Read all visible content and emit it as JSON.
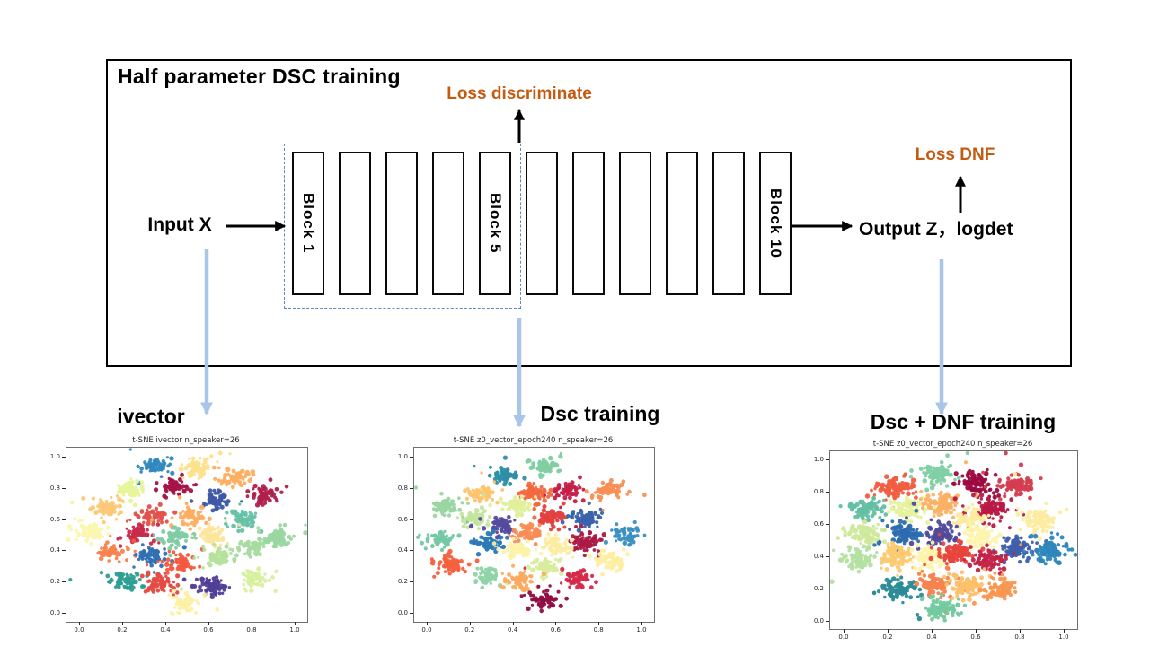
{
  "diagram": {
    "box_title": "Half parameter DSC training",
    "input_label": "Input X",
    "output_label": "Output Z，logdet",
    "loss_discriminate_label": "Loss discriminate",
    "loss_dnf_label": "Loss DNF",
    "blocks": [
      "Block 1",
      "",
      "",
      "",
      "Block 5",
      "",
      "",
      "",
      "",
      "",
      "Block 10"
    ],
    "colors": {
      "loss_text": "#c55a11",
      "box_title_gray": "#a9a9a9",
      "dashed_border": "#6187b4",
      "flow_arrow_blue": "#a9c6e8",
      "arrow_black": "#000000"
    }
  },
  "chart_data": [
    {
      "type": "scatter",
      "heading": "ivector",
      "title": "t-SNE  ivector n_speaker=26",
      "x_ticks": [
        "0.0",
        "0.2",
        "0.4",
        "0.6",
        "0.8",
        "1.0"
      ],
      "y_ticks": [
        "0.0",
        "0.2",
        "0.4",
        "0.6",
        "0.8",
        "1.0"
      ],
      "xlim": [
        0,
        1
      ],
      "ylim": [
        0,
        1
      ],
      "n_speakers": 26,
      "clusters": [
        {
          "x": 0.35,
          "y": 0.93,
          "color": "#3288bd"
        },
        {
          "x": 0.55,
          "y": 0.93,
          "color": "#fee08b"
        },
        {
          "x": 0.72,
          "y": 0.87,
          "color": "#fdae61"
        },
        {
          "x": 0.24,
          "y": 0.79,
          "color": "#e6f598"
        },
        {
          "x": 0.44,
          "y": 0.8,
          "color": "#a51347"
        },
        {
          "x": 0.63,
          "y": 0.73,
          "color": "#3e59a7"
        },
        {
          "x": 0.86,
          "y": 0.75,
          "color": "#b0204c"
        },
        {
          "x": 0.12,
          "y": 0.67,
          "color": "#fdc877"
        },
        {
          "x": 0.34,
          "y": 0.62,
          "color": "#e1514b"
        },
        {
          "x": 0.52,
          "y": 0.62,
          "color": "#fdae61"
        },
        {
          "x": 0.76,
          "y": 0.6,
          "color": "#66c2a5"
        },
        {
          "x": 0.05,
          "y": 0.52,
          "color": "#fbf7ae"
        },
        {
          "x": 0.27,
          "y": 0.5,
          "color": "#c92a49"
        },
        {
          "x": 0.45,
          "y": 0.48,
          "color": "#7fcba4"
        },
        {
          "x": 0.62,
          "y": 0.5,
          "color": "#fee59d"
        },
        {
          "x": 0.92,
          "y": 0.48,
          "color": "#9ad7a0"
        },
        {
          "x": 0.15,
          "y": 0.39,
          "color": "#f9824f"
        },
        {
          "x": 0.33,
          "y": 0.36,
          "color": "#2f6fb3"
        },
        {
          "x": 0.47,
          "y": 0.32,
          "color": "#f4593f"
        },
        {
          "x": 0.65,
          "y": 0.35,
          "color": "#b5e19c"
        },
        {
          "x": 0.8,
          "y": 0.42,
          "color": "#a6dba0"
        },
        {
          "x": 0.22,
          "y": 0.2,
          "color": "#2d9e94"
        },
        {
          "x": 0.38,
          "y": 0.18,
          "color": "#e44b42"
        },
        {
          "x": 0.62,
          "y": 0.17,
          "color": "#4f3f97"
        },
        {
          "x": 0.82,
          "y": 0.22,
          "color": "#d8ef9e"
        },
        {
          "x": 0.5,
          "y": 0.06,
          "color": "#fdf0a4"
        }
      ]
    },
    {
      "type": "scatter",
      "heading": "Dsc training",
      "title": "t-SNE z0_vector_epoch240 n_speaker=26",
      "x_ticks": [
        "0.0",
        "0.2",
        "0.4",
        "0.6",
        "0.8",
        "1.0"
      ],
      "y_ticks": [
        "0.0",
        "0.2",
        "0.4",
        "0.6",
        "0.8",
        "1.0"
      ],
      "xlim": [
        0,
        1
      ],
      "ylim": [
        0,
        1
      ],
      "n_speakers": 26,
      "clusters": [
        {
          "x": 0.37,
          "y": 0.88,
          "color": "#2d8fa5"
        },
        {
          "x": 0.56,
          "y": 0.94,
          "color": "#7fcfa0"
        },
        {
          "x": 0.25,
          "y": 0.77,
          "color": "#fdc46d"
        },
        {
          "x": 0.5,
          "y": 0.76,
          "color": "#f2683c"
        },
        {
          "x": 0.66,
          "y": 0.78,
          "color": "#c41f48"
        },
        {
          "x": 0.84,
          "y": 0.78,
          "color": "#f98e52"
        },
        {
          "x": 0.09,
          "y": 0.68,
          "color": "#9ad5a2"
        },
        {
          "x": 0.42,
          "y": 0.69,
          "color": "#dfef9b"
        },
        {
          "x": 0.22,
          "y": 0.6,
          "color": "#c3e59d"
        },
        {
          "x": 0.35,
          "y": 0.56,
          "color": "#544a9e"
        },
        {
          "x": 0.58,
          "y": 0.61,
          "color": "#e2413f"
        },
        {
          "x": 0.74,
          "y": 0.6,
          "color": "#3b63ad"
        },
        {
          "x": 0.07,
          "y": 0.47,
          "color": "#74c8a4"
        },
        {
          "x": 0.29,
          "y": 0.45,
          "color": "#2b79b5"
        },
        {
          "x": 0.47,
          "y": 0.51,
          "color": "#f98c54"
        },
        {
          "x": 0.74,
          "y": 0.46,
          "color": "#aa1a44"
        },
        {
          "x": 0.93,
          "y": 0.5,
          "color": "#3b8fc2"
        },
        {
          "x": 0.42,
          "y": 0.4,
          "color": "#fdf2a8"
        },
        {
          "x": 0.61,
          "y": 0.43,
          "color": "#fdeca0"
        },
        {
          "x": 0.11,
          "y": 0.32,
          "color": "#f5603d"
        },
        {
          "x": 0.29,
          "y": 0.24,
          "color": "#8ed4a7"
        },
        {
          "x": 0.55,
          "y": 0.3,
          "color": "#d9ec9d"
        },
        {
          "x": 0.85,
          "y": 0.33,
          "color": "#fdeea2"
        },
        {
          "x": 0.44,
          "y": 0.2,
          "color": "#fbab60"
        },
        {
          "x": 0.7,
          "y": 0.22,
          "color": "#d7294a"
        },
        {
          "x": 0.55,
          "y": 0.08,
          "color": "#8f0e43"
        }
      ]
    },
    {
      "type": "scatter",
      "heading": "Dsc + DNF training",
      "title": "t-SNE z0_vector_epoch240 n_speaker=26",
      "x_ticks": [
        "0.0",
        "0.2",
        "0.4",
        "0.6",
        "0.8",
        "1.0"
      ],
      "y_ticks": [
        "0.0",
        "0.2",
        "0.4",
        "0.6",
        "0.8",
        "1.0"
      ],
      "xlim": [
        0,
        1
      ],
      "ylim": [
        0,
        1
      ],
      "n_speakers": 26,
      "clusters": [
        {
          "x": 0.42,
          "y": 0.91,
          "color": "#7fcfa4"
        },
        {
          "x": 0.23,
          "y": 0.83,
          "color": "#f15c40"
        },
        {
          "x": 0.61,
          "y": 0.85,
          "color": "#9c0b42"
        },
        {
          "x": 0.79,
          "y": 0.84,
          "color": "#d43d4f"
        },
        {
          "x": 0.1,
          "y": 0.69,
          "color": "#62bfa2"
        },
        {
          "x": 0.3,
          "y": 0.7,
          "color": "#e4f29c"
        },
        {
          "x": 0.44,
          "y": 0.72,
          "color": "#fbb164"
        },
        {
          "x": 0.68,
          "y": 0.69,
          "color": "#b81a46"
        },
        {
          "x": 0.57,
          "y": 0.63,
          "color": "#fdeb9f"
        },
        {
          "x": 0.89,
          "y": 0.63,
          "color": "#fdeb9f"
        },
        {
          "x": 0.1,
          "y": 0.54,
          "color": "#cfe99c"
        },
        {
          "x": 0.28,
          "y": 0.54,
          "color": "#2d6cb0"
        },
        {
          "x": 0.44,
          "y": 0.54,
          "color": "#4e4a9c"
        },
        {
          "x": 0.62,
          "y": 0.52,
          "color": "#fdf3ad"
        },
        {
          "x": 0.79,
          "y": 0.45,
          "color": "#3f5fab"
        },
        {
          "x": 0.94,
          "y": 0.43,
          "color": "#2e86bb"
        },
        {
          "x": 0.07,
          "y": 0.38,
          "color": "#b4e0a2"
        },
        {
          "x": 0.24,
          "y": 0.4,
          "color": "#fdc96f"
        },
        {
          "x": 0.39,
          "y": 0.4,
          "color": "#fdf3ad"
        },
        {
          "x": 0.51,
          "y": 0.42,
          "color": "#e8453d"
        },
        {
          "x": 0.66,
          "y": 0.38,
          "color": "#c32347"
        },
        {
          "x": 0.25,
          "y": 0.2,
          "color": "#2b8b96"
        },
        {
          "x": 0.41,
          "y": 0.23,
          "color": "#f7824d"
        },
        {
          "x": 0.56,
          "y": 0.22,
          "color": "#fdc06b"
        },
        {
          "x": 0.71,
          "y": 0.2,
          "color": "#f9964f"
        },
        {
          "x": 0.45,
          "y": 0.07,
          "color": "#74c9a0"
        }
      ]
    }
  ]
}
